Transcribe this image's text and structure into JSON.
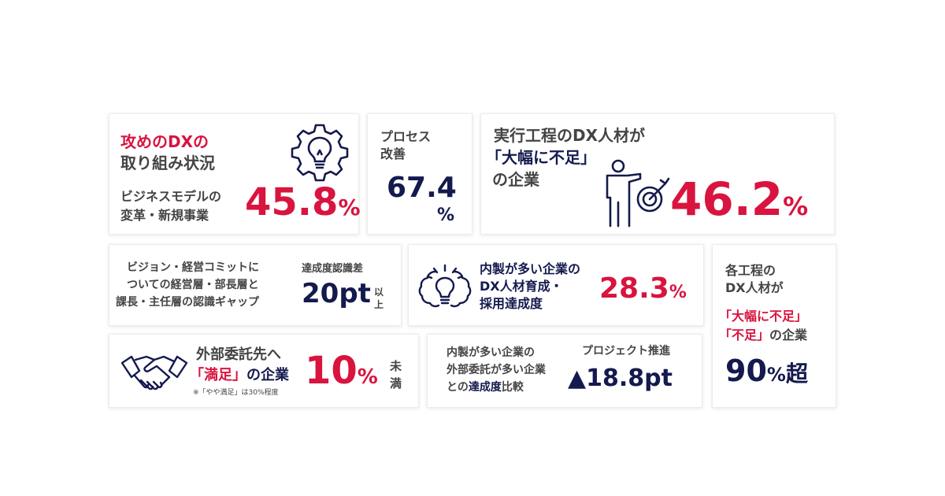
{
  "card1": {
    "title_line1": "攻めのDXの",
    "title_line2": "取り組み状況",
    "label_line1": "ビジネスモデルの",
    "label_line2": "変革・新規事業",
    "value": "45.8",
    "unit": "%",
    "icon": "gear-lightbulb-icon"
  },
  "card2": {
    "label_line1": "プロセス",
    "label_line2": "改善",
    "value": "67.4",
    "unit": "%"
  },
  "card3": {
    "line1": "実行工程のDX人材が",
    "line2": "「大幅に不足」",
    "line3": "の企業",
    "value": "46.2",
    "unit": "%",
    "icon": "person-target-icon"
  },
  "card4": {
    "line1": "ビジョン・経営コミットに",
    "line2": "ついての経営層・部長層と",
    "line3": "課長・主任層の認識ギャップ",
    "label": "達成度認識差",
    "value": "20pt",
    "suffix_line1": "以",
    "suffix_line2": "上"
  },
  "card5": {
    "line1": "内製が多い企業の",
    "line2": "DX人材育成・",
    "line3": "採用達成度",
    "value": "28.3",
    "unit": "%",
    "icon": "brain-lightbulb-icon"
  },
  "card6": {
    "line1": "各工程の",
    "line2": "DX人材が",
    "line3": "「大幅に不足」",
    "line4_red": "「不足」",
    "line4_rest": "の企業",
    "value": "90",
    "unit": "%",
    "suffix": "超"
  },
  "card7": {
    "line1": "外部委託先へ",
    "line2_red": "「満足」",
    "line2_rest": "の企業",
    "note": "※「やや満足」は30%程度",
    "value": "10",
    "unit": "%",
    "suffix_line1": "未",
    "suffix_line2": "満",
    "icon": "handshake-icon"
  },
  "card8": {
    "line1": "内製が多い企業の",
    "line2": "外部委託が多い企業",
    "line3_pre": "との",
    "line3_bold": "達成度",
    "line3_post": "比較",
    "label": "プロジェクト推進",
    "value": "▲18.8pt"
  }
}
